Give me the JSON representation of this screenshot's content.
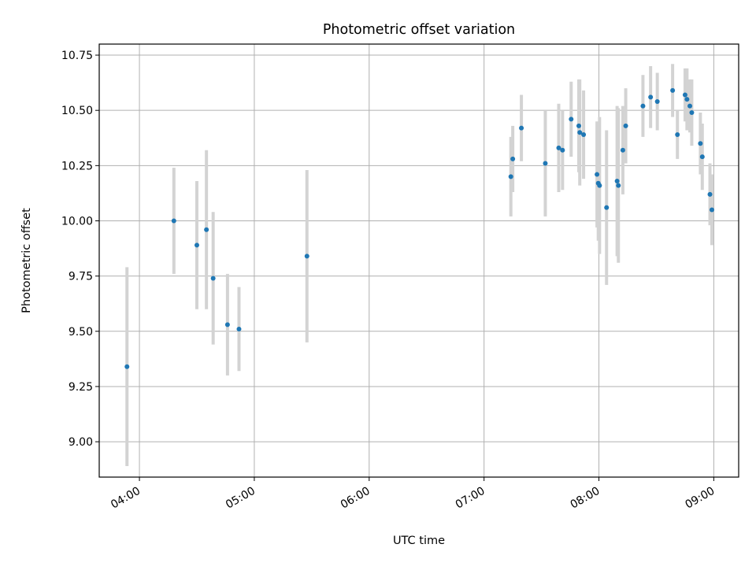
{
  "colors": {
    "marker": "#1f77b4",
    "errorbar": "#d3d3d3",
    "grid": "#b0b0b0",
    "axes": "#000000"
  },
  "chart_data": {
    "type": "scatter",
    "title": "Photometric offset variation",
    "xlabel": "UTC time",
    "ylabel": "Photometric offset",
    "xlim": [
      "03:39:00",
      "09:13:00"
    ],
    "ylim": [
      8.84,
      10.8
    ],
    "grid": true,
    "x_ticks": [
      "04:00",
      "05:00",
      "06:00",
      "07:00",
      "08:00",
      "09:00"
    ],
    "y_ticks": [
      "9.00",
      "9.25",
      "9.50",
      "9.75",
      "10.00",
      "10.25",
      "10.50",
      "10.75"
    ],
    "series": [
      {
        "points": [
          {
            "t": "03:53:30",
            "y": 9.34,
            "err": 0.45
          },
          {
            "t": "04:18:00",
            "y": 10.0,
            "err": 0.24
          },
          {
            "t": "04:30:00",
            "y": 9.89,
            "err": 0.29
          },
          {
            "t": "04:35:00",
            "y": 9.96,
            "err": 0.36
          },
          {
            "t": "04:38:30",
            "y": 9.74,
            "err": 0.3
          },
          {
            "t": "04:46:00",
            "y": 9.53,
            "err": 0.23
          },
          {
            "t": "04:52:00",
            "y": 9.51,
            "err": 0.19
          },
          {
            "t": "05:27:30",
            "y": 9.84,
            "err": 0.39
          },
          {
            "t": "07:14:00",
            "y": 10.2,
            "err": 0.18
          },
          {
            "t": "07:15:00",
            "y": 10.28,
            "err": 0.15
          },
          {
            "t": "07:19:30",
            "y": 10.42,
            "err": 0.15
          },
          {
            "t": "07:32:00",
            "y": 10.26,
            "err": 0.24
          },
          {
            "t": "07:39:00",
            "y": 10.33,
            "err": 0.2
          },
          {
            "t": "07:41:00",
            "y": 10.32,
            "err": 0.18
          },
          {
            "t": "07:45:30",
            "y": 10.46,
            "err": 0.17
          },
          {
            "t": "07:49:30",
            "y": 10.43,
            "err": 0.21
          },
          {
            "t": "07:50:00",
            "y": 10.4,
            "err": 0.24
          },
          {
            "t": "07:52:00",
            "y": 10.39,
            "err": 0.2
          },
          {
            "t": "07:59:00",
            "y": 10.21,
            "err": 0.24
          },
          {
            "t": "07:59:40",
            "y": 10.17,
            "err": 0.26
          },
          {
            "t": "08:00:20",
            "y": 10.16,
            "err": 0.31
          },
          {
            "t": "08:04:00",
            "y": 10.06,
            "err": 0.35
          },
          {
            "t": "08:09:30",
            "y": 10.18,
            "err": 0.34
          },
          {
            "t": "08:10:10",
            "y": 10.16,
            "err": 0.35
          },
          {
            "t": "08:12:30",
            "y": 10.32,
            "err": 0.2
          },
          {
            "t": "08:14:00",
            "y": 10.43,
            "err": 0.17
          },
          {
            "t": "08:23:00",
            "y": 10.52,
            "err": 0.14
          },
          {
            "t": "08:27:00",
            "y": 10.56,
            "err": 0.14
          },
          {
            "t": "08:30:30",
            "y": 10.54,
            "err": 0.13
          },
          {
            "t": "08:38:30",
            "y": 10.59,
            "err": 0.12
          },
          {
            "t": "08:41:00",
            "y": 10.39,
            "err": 0.11
          },
          {
            "t": "08:45:00",
            "y": 10.57,
            "err": 0.12
          },
          {
            "t": "08:46:00",
            "y": 10.55,
            "err": 0.14
          },
          {
            "t": "08:47:30",
            "y": 10.52,
            "err": 0.12
          },
          {
            "t": "08:48:30",
            "y": 10.49,
            "err": 0.15
          },
          {
            "t": "08:53:00",
            "y": 10.35,
            "err": 0.14
          },
          {
            "t": "08:54:00",
            "y": 10.29,
            "err": 0.15
          },
          {
            "t": "08:58:00",
            "y": 10.12,
            "err": 0.14
          },
          {
            "t": "08:59:00",
            "y": 10.05,
            "err": 0.16
          }
        ]
      }
    ]
  }
}
